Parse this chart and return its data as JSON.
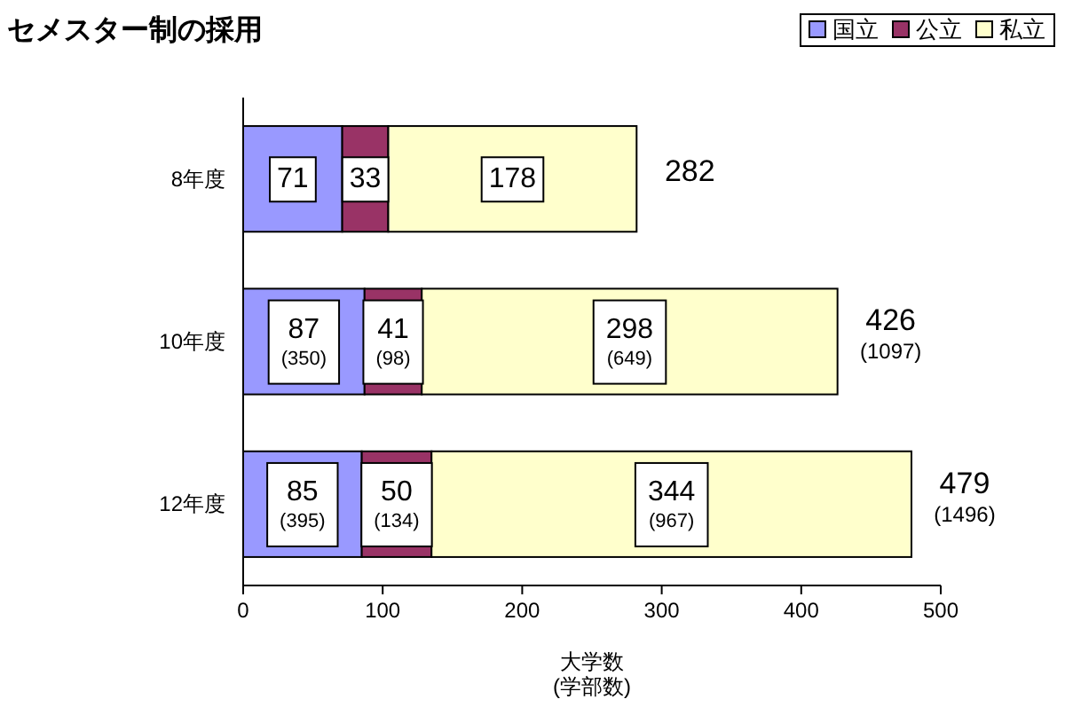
{
  "chart_data": {
    "type": "bar",
    "orientation": "horizontal",
    "stacked": true,
    "title": "セメスター制の採用",
    "xlabel": "大学数\n(学部数)",
    "categories": [
      "8年度",
      "10年度",
      "12年度"
    ],
    "series": [
      {
        "name": "国立",
        "color": "#9999ff",
        "values": [
          71,
          87,
          85
        ],
        "value_labels": [
          "71",
          "87\n(350)",
          "85\n(395)"
        ]
      },
      {
        "name": "公立",
        "color": "#993366",
        "values": [
          33,
          41,
          50
        ],
        "value_labels": [
          "33",
          "41\n(98)",
          "50\n(134)"
        ]
      },
      {
        "name": "私立",
        "color": "#ffffcc",
        "values": [
          178,
          298,
          344
        ],
        "value_labels": [
          "178",
          "298\n(649)",
          "344\n(967)"
        ]
      }
    ],
    "totals": [
      "282",
      "426\n(1097)",
      "479\n(1496)"
    ],
    "xlim": [
      0,
      500
    ],
    "xticks": [
      0,
      100,
      200,
      300,
      400,
      500
    ],
    "legend": "top right"
  }
}
